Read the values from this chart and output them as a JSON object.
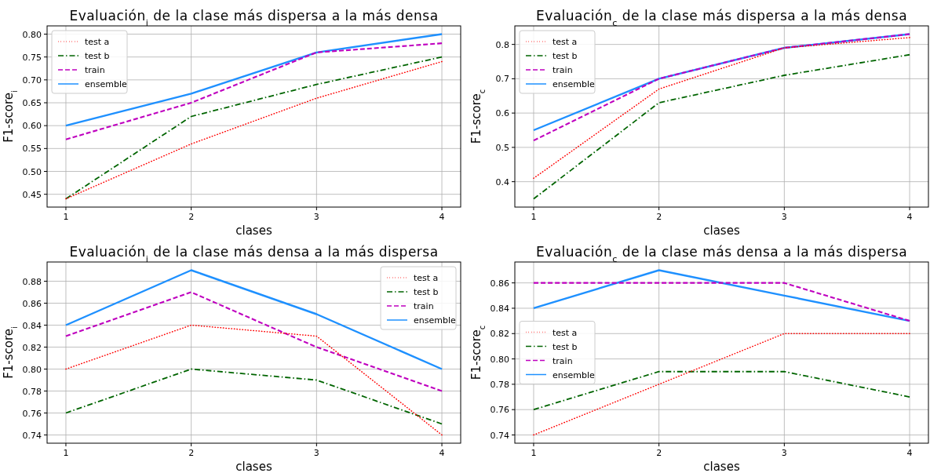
{
  "chart_data": [
    {
      "type": "line",
      "title": "Evaluación$_{i}$ de la clase más dispersa a la más densa",
      "xlabel": "clases",
      "ylabel": "F1-score$_{i}$",
      "x": [
        1,
        2,
        3,
        4
      ],
      "xlim": [
        0.85,
        4.15
      ],
      "xticks": [
        1,
        2,
        3,
        4
      ],
      "ylim": [
        0.422,
        0.818
      ],
      "yticks": [
        {
          "value": 0.45,
          "label": "0.45"
        },
        {
          "value": 0.5,
          "label": "0.50"
        },
        {
          "value": 0.55,
          "label": "0.55"
        },
        {
          "value": 0.6,
          "label": "0.60"
        },
        {
          "value": 0.65,
          "label": "0.65"
        },
        {
          "value": 0.7,
          "label": "0.70"
        },
        {
          "value": 0.75,
          "label": "0.75"
        },
        {
          "value": 0.8,
          "label": "0.80"
        }
      ],
      "grid": true,
      "legend": "top left",
      "series": [
        {
          "name": "test a",
          "color": "#ff0000",
          "line_style": "dotted",
          "values": [
            0.44,
            0.56,
            0.66,
            0.74
          ]
        },
        {
          "name": "test b",
          "color": "#006400",
          "line_style": "dashdot",
          "values": [
            0.44,
            0.62,
            0.69,
            0.75
          ]
        },
        {
          "name": "train",
          "color": "#bf00bf",
          "line_style": "dashed",
          "values": [
            0.57,
            0.65,
            0.76,
            0.78
          ]
        },
        {
          "name": "ensemble",
          "color": "#1e90ff",
          "line_style": "solid",
          "values": [
            0.6,
            0.67,
            0.76,
            0.8
          ]
        }
      ]
    },
    {
      "type": "line",
      "title": "Evaluación$_{c}$ de la clase más dispersa a la más densa",
      "xlabel": "clases",
      "ylabel": "F1-score$_{c}$",
      "x": [
        1,
        2,
        3,
        4
      ],
      "xlim": [
        0.85,
        4.15
      ],
      "xticks": [
        1,
        2,
        3,
        4
      ],
      "ylim": [
        0.326,
        0.854
      ],
      "yticks": [
        0.4,
        0.5,
        0.6,
        0.7,
        0.8
      ],
      "grid": true,
      "legend": "top left",
      "series": [
        {
          "name": "test a",
          "color": "#ff0000",
          "line_style": "dotted",
          "values": [
            0.41,
            0.67,
            0.79,
            0.82
          ]
        },
        {
          "name": "test b",
          "color": "#006400",
          "line_style": "dashdot",
          "values": [
            0.35,
            0.63,
            0.71,
            0.77
          ]
        },
        {
          "name": "train",
          "color": "#bf00bf",
          "line_style": "dashed",
          "values": [
            0.52,
            0.7,
            0.79,
            0.83
          ]
        },
        {
          "name": "ensemble",
          "color": "#1e90ff",
          "line_style": "solid",
          "values": [
            0.55,
            0.7,
            0.79,
            0.83
          ]
        }
      ]
    },
    {
      "type": "line",
      "title": "Evaluación$_{i}$ de la clase más densa a la más dispersa",
      "xlabel": "clases",
      "ylabel": "F1-score$_{i}$",
      "x": [
        1,
        2,
        3,
        4
      ],
      "xlim": [
        0.85,
        4.15
      ],
      "xticks": [
        1,
        2,
        3,
        4
      ],
      "ylim": [
        0.7325,
        0.8975
      ],
      "yticks": [
        0.74,
        0.76,
        0.78,
        {
          "value": 0.8,
          "label": "0.80"
        },
        0.82,
        0.84,
        0.86,
        0.88
      ],
      "grid": true,
      "legend": "top right",
      "series": [
        {
          "name": "test a",
          "color": "#ff0000",
          "line_style": "dotted",
          "values": [
            0.8,
            0.84,
            0.83,
            0.74
          ]
        },
        {
          "name": "test b",
          "color": "#006400",
          "line_style": "dashdot",
          "values": [
            0.76,
            0.8,
            0.79,
            0.75
          ]
        },
        {
          "name": "train",
          "color": "#bf00bf",
          "line_style": "dashed",
          "values": [
            0.83,
            0.87,
            0.82,
            0.78
          ]
        },
        {
          "name": "ensemble",
          "color": "#1e90ff",
          "line_style": "solid",
          "values": [
            0.84,
            0.89,
            0.85,
            0.8
          ]
        }
      ]
    },
    {
      "type": "line",
      "title": "Evaluación$_{c}$ de la clase más densa a la más dispersa",
      "xlabel": "clases",
      "ylabel": "F1-score$_{c}$",
      "x": [
        1,
        2,
        3,
        4
      ],
      "xlim": [
        0.85,
        4.15
      ],
      "xticks": [
        1,
        2,
        3,
        4
      ],
      "ylim": [
        0.7335,
        0.8765
      ],
      "yticks": [
        0.74,
        0.76,
        0.78,
        {
          "value": 0.8,
          "label": "0.80"
        },
        0.82,
        0.84,
        0.86
      ],
      "grid": true,
      "legend": "left",
      "series": [
        {
          "name": "test a",
          "color": "#ff0000",
          "line_style": "dotted",
          "values": [
            0.74,
            0.78,
            0.82,
            0.82
          ]
        },
        {
          "name": "test b",
          "color": "#006400",
          "line_style": "dashdot",
          "values": [
            0.76,
            0.79,
            0.79,
            0.77
          ]
        },
        {
          "name": "train",
          "color": "#bf00bf",
          "line_style": "dashed",
          "values": [
            0.86,
            0.86,
            0.86,
            0.83
          ]
        },
        {
          "name": "ensemble",
          "color": "#1e90ff",
          "line_style": "solid",
          "values": [
            0.84,
            0.87,
            0.85,
            0.83
          ]
        }
      ]
    }
  ]
}
